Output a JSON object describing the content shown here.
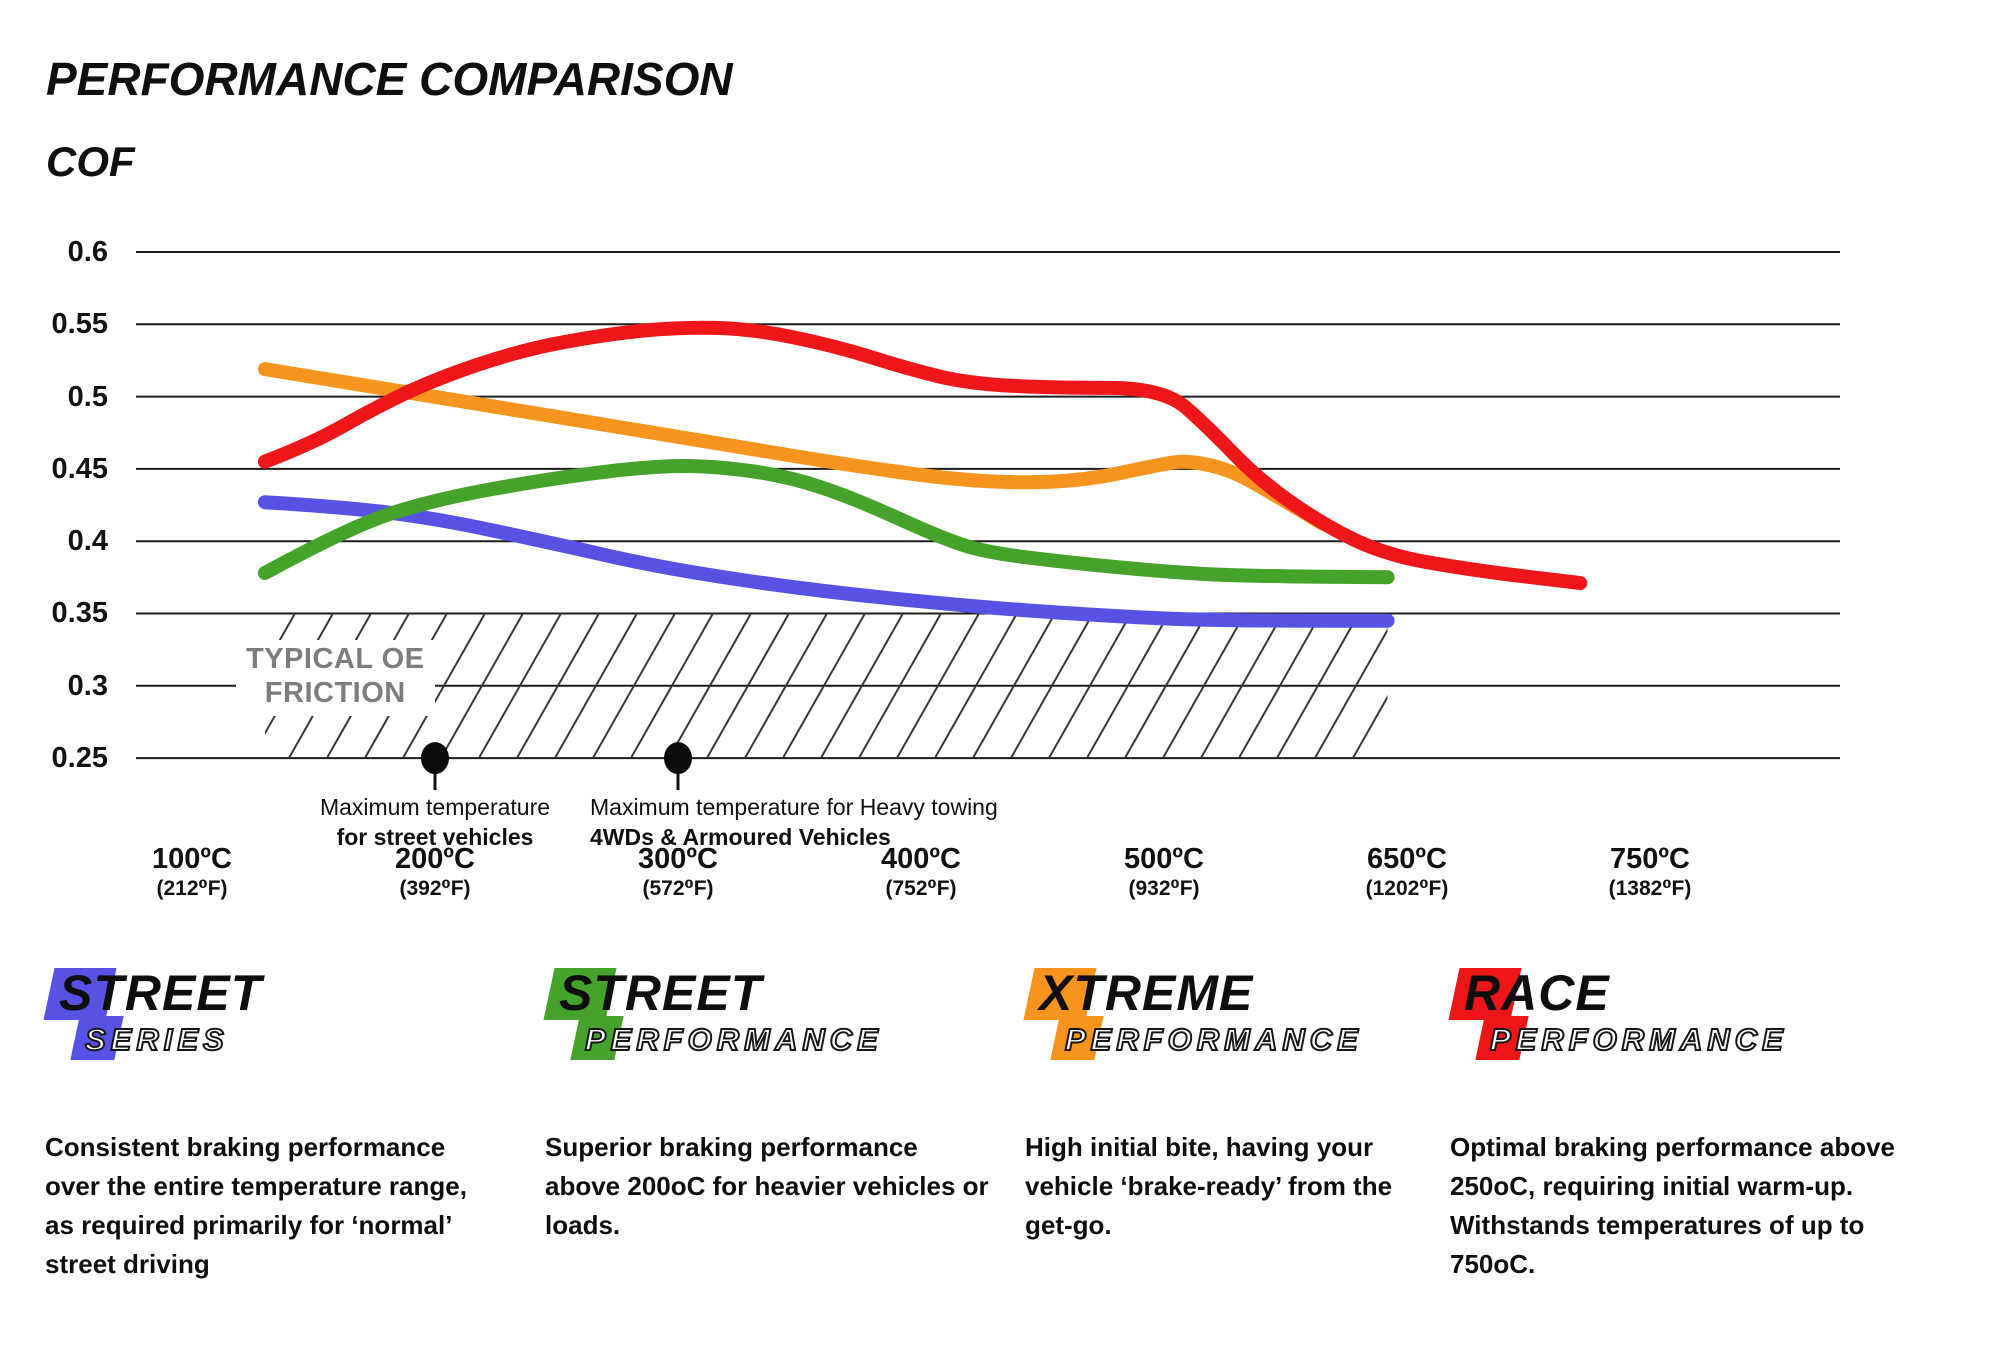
{
  "title": "PERFORMANCE COMPARISON",
  "y_axis_title": "COF",
  "chart_data": {
    "type": "line",
    "title": "Performance Comparison",
    "ylabel": "COF",
    "grid": true,
    "y_axis": {
      "min": 0.25,
      "max": 0.6,
      "tick_step": 0.05,
      "tick_labels": [
        "0.6",
        "0.55",
        "0.5",
        "0.45",
        "0.4",
        "0.35",
        "0.3",
        "0.25"
      ],
      "tick_values": [
        0.6,
        0.55,
        0.5,
        0.45,
        0.4,
        0.35,
        0.3,
        0.25
      ]
    },
    "x_axis": {
      "unit": "temperature",
      "ticks": [
        {
          "c": "100ºC",
          "f": "(212⁰F)"
        },
        {
          "c": "200ºC",
          "f": "(392⁰F)"
        },
        {
          "c": "300ºC",
          "f": "(572⁰F)"
        },
        {
          "c": "400ºC",
          "f": "(752⁰F)"
        },
        {
          "c": "500ºC",
          "f": "(932⁰F)"
        },
        {
          "c": "650ºC",
          "f": "(1202⁰F)"
        },
        {
          "c": "750ºC",
          "f": "(1382⁰F)"
        }
      ]
    },
    "series": [
      {
        "name": "Street Series",
        "color": "#5752e3",
        "points": [
          [
            130,
            0.427
          ],
          [
            160,
            0.424
          ],
          [
            200,
            0.416
          ],
          [
            250,
            0.398
          ],
          [
            295,
            0.381
          ],
          [
            355,
            0.366
          ],
          [
            420,
            0.355
          ],
          [
            470,
            0.349
          ],
          [
            510,
            0.346
          ],
          [
            560,
            0.345
          ],
          [
            638,
            0.345
          ]
        ]
      },
      {
        "name": "Street Performance",
        "color": "#45a32b",
        "points": [
          [
            130,
            0.378
          ],
          [
            165,
            0.41
          ],
          [
            200,
            0.429
          ],
          [
            250,
            0.444
          ],
          [
            290,
            0.452
          ],
          [
            315,
            0.452
          ],
          [
            345,
            0.445
          ],
          [
            372,
            0.43
          ],
          [
            410,
            0.401
          ],
          [
            428,
            0.392
          ],
          [
            462,
            0.385
          ],
          [
            500,
            0.379
          ],
          [
            545,
            0.376
          ],
          [
            638,
            0.375
          ]
        ]
      },
      {
        "name": "Xtreme Performance",
        "color": "#f7941e",
        "points": [
          [
            130,
            0.519
          ],
          [
            200,
            0.5
          ],
          [
            300,
            0.472
          ],
          [
            395,
            0.446
          ],
          [
            435,
            0.44
          ],
          [
            468,
            0.442
          ],
          [
            498,
            0.453
          ],
          [
            515,
            0.456
          ],
          [
            542,
            0.449
          ],
          [
            570,
            0.431
          ],
          [
            598,
            0.412
          ]
        ]
      },
      {
        "name": "Race Performance",
        "color": "#ee1618",
        "points": [
          [
            130,
            0.455
          ],
          [
            150,
            0.468
          ],
          [
            175,
            0.492
          ],
          [
            200,
            0.512
          ],
          [
            235,
            0.532
          ],
          [
            270,
            0.543
          ],
          [
            300,
            0.548
          ],
          [
            330,
            0.547
          ],
          [
            365,
            0.535
          ],
          [
            395,
            0.519
          ],
          [
            420,
            0.509
          ],
          [
            455,
            0.506
          ],
          [
            500,
            0.506
          ],
          [
            528,
            0.478
          ],
          [
            558,
            0.443
          ],
          [
            596,
            0.413
          ],
          [
            635,
            0.391
          ],
          [
            690,
            0.38
          ],
          [
            757,
            0.371
          ]
        ]
      }
    ],
    "oe_zone": {
      "label_line1": "TYPICAL OE",
      "label_line2": "FRICTION",
      "t_start": 130,
      "t_end": 638,
      "cof_bottom": 0.25,
      "cof_top": 0.35
    },
    "annotations": [
      {
        "t": 200,
        "cof": 0.25,
        "line1": "Maximum temperature",
        "line2": "for street vehicles"
      },
      {
        "t": 300,
        "cof": 0.25,
        "line1": "Maximum temperature for Heavy towing",
        "line2": "4WDs & Armoured Vehicles"
      }
    ]
  },
  "legend": [
    {
      "word1": "STREET",
      "word2": "SERIES",
      "color": "#5752e3",
      "description": "Consistent braking performance over the entire temperature range, as required primarily for ‘normal’ street driving"
    },
    {
      "word1": "STREET",
      "word2": "PERFORMANCE",
      "color": "#45a32b",
      "description": "Superior braking performance above 200oC for heavier vehicles or loads."
    },
    {
      "word1": "XTREME",
      "word2": "PERFORMANCE",
      "color": "#f7941e",
      "description": "High initial bite, having your vehicle ‘brake-ready’ from the get-go."
    },
    {
      "word1": "RACE",
      "word2": "PERFORMANCE",
      "color": "#ee1618",
      "description": "Optimal braking performance above 250oC, requiring initial warm-up. Withstands temperatures of up to 750oC."
    }
  ]
}
